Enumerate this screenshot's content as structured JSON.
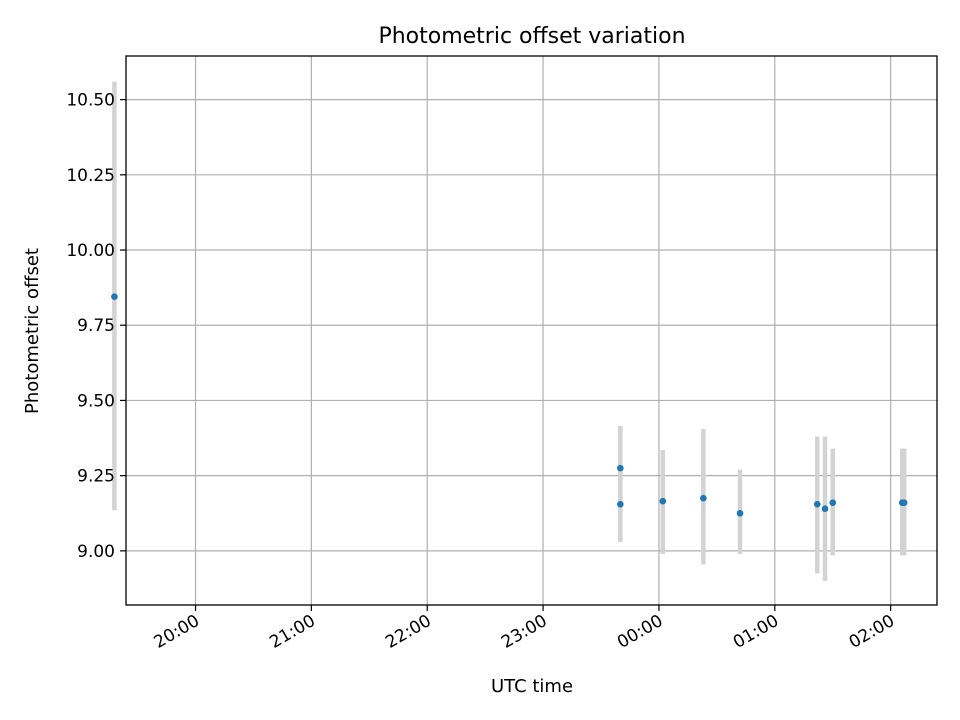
{
  "chart_data": {
    "type": "scatter",
    "title": "Photometric offset variation",
    "xlabel": "UTC time",
    "ylabel": "Photometric offset",
    "x_axis_type": "time",
    "xlim": [
      "19:24",
      "02:24"
    ],
    "ylim": [
      8.82,
      10.645
    ],
    "grid": true,
    "legend": "none",
    "x_ticks": [
      "20:00",
      "21:00",
      "22:00",
      "23:00",
      "00:00",
      "01:00",
      "02:00"
    ],
    "y_ticks": [
      "9.00",
      "9.25",
      "9.50",
      "9.75",
      "10.00",
      "10.25",
      "10.50"
    ],
    "colors": {
      "point": "#1f77b4",
      "error_bar": "#d3d3d3",
      "grid": "#b0b0b0"
    },
    "points": [
      {
        "x": "19:18",
        "y": 9.845,
        "ylow": 9.135,
        "yhigh": 10.56
      },
      {
        "x": "23:40",
        "y": 9.275,
        "ylow": 9.03,
        "yhigh": 9.415
      },
      {
        "x": "23:40",
        "y": 9.155,
        "ylow": 9.03,
        "yhigh": 9.415
      },
      {
        "x": "00:02",
        "y": 9.165,
        "ylow": 8.99,
        "yhigh": 9.335
      },
      {
        "x": "00:23",
        "y": 9.175,
        "ylow": 8.955,
        "yhigh": 9.405
      },
      {
        "x": "00:42",
        "y": 9.125,
        "ylow": 8.99,
        "yhigh": 9.27
      },
      {
        "x": "01:22",
        "y": 9.155,
        "ylow": 8.925,
        "yhigh": 9.38
      },
      {
        "x": "01:26",
        "y": 9.14,
        "ylow": 8.9,
        "yhigh": 9.38
      },
      {
        "x": "01:30",
        "y": 9.16,
        "ylow": 8.985,
        "yhigh": 9.34
      },
      {
        "x": "02:06",
        "y": 9.16,
        "ylow": 8.985,
        "yhigh": 9.34
      },
      {
        "x": "02:07",
        "y": 9.16,
        "ylow": 8.985,
        "yhigh": 9.34
      }
    ]
  }
}
